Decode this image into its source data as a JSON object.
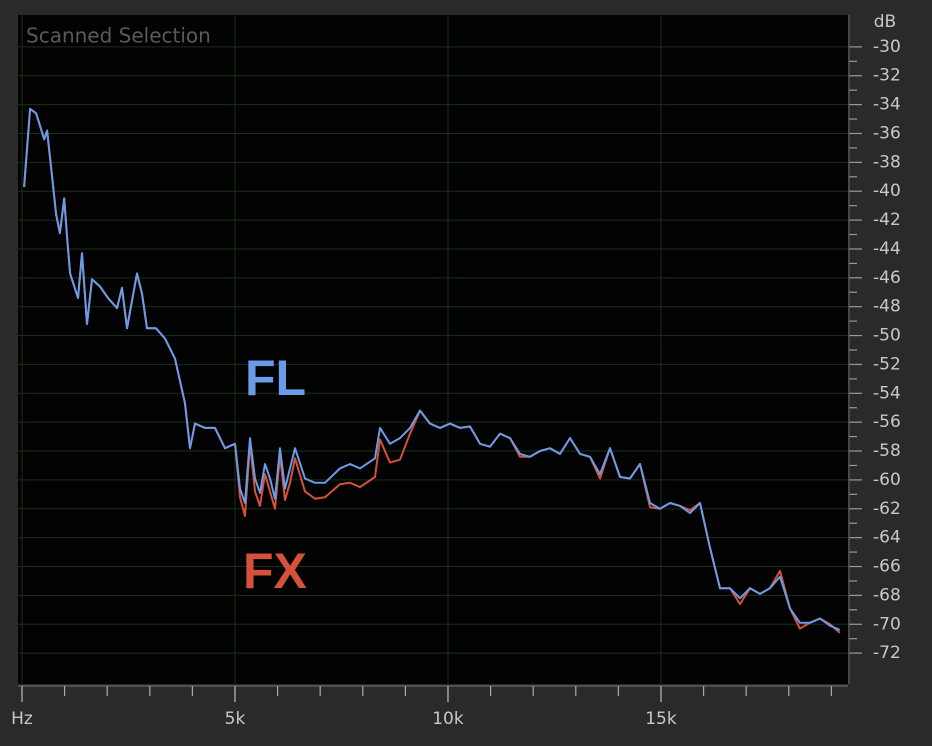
{
  "chart_data": {
    "type": "line",
    "title": "Scanned Selection",
    "ylabel": "dB",
    "x": [
      50,
      190,
      330,
      520,
      590,
      700,
      800,
      890,
      990,
      1060,
      1130,
      1315,
      1408,
      1526,
      1643,
      1831,
      2019,
      2230,
      2347,
      2465,
      2700,
      2817,
      2934,
      3146,
      3357,
      3591,
      3826,
      3944,
      4061,
      4296,
      4531,
      4765,
      5000,
      5117,
      5235,
      5352,
      5469,
      5587,
      5704,
      5822,
      5939,
      6056,
      6174,
      6291,
      6408,
      6643,
      6878,
      7113,
      7465,
      7700,
      7934,
      8286,
      8404,
      8638,
      8873,
      9108,
      9343,
      9577,
      9812,
      10047,
      10282,
      10516,
      10751,
      10986,
      11220,
      11455,
      11690,
      11925,
      12160,
      12394,
      12629,
      12864,
      13098,
      13333,
      13568,
      13803,
      14037,
      14272,
      14507,
      14742,
      14976,
      15211,
      15446,
      15681,
      15915,
      16150,
      16385,
      16620,
      16854,
      17089,
      17324,
      17558,
      17793,
      18028,
      18262,
      18497,
      18732,
      18967,
      19201
    ],
    "series": [
      {
        "name": "FX",
        "color": "#d6513c",
        "values": [
          -39.7,
          -34.3,
          -34.6,
          -36.4,
          -35.8,
          -38.8,
          -41.6,
          -42.9,
          -40.5,
          -43.3,
          -45.7,
          -47.4,
          -44.3,
          -49.2,
          -46.1,
          -46.6,
          -47.4,
          -48.1,
          -46.7,
          -49.5,
          -45.7,
          -47.1,
          -49.5,
          -49.5,
          -50.2,
          -51.6,
          -54.7,
          -57.8,
          -56.1,
          -56.4,
          -56.4,
          -57.8,
          -57.5,
          -61.2,
          -62.5,
          -57.5,
          -60.8,
          -61.8,
          -59.6,
          -60.8,
          -62.0,
          -58.3,
          -61.4,
          -60.2,
          -58.5,
          -60.8,
          -61.3,
          -61.2,
          -60.3,
          -60.2,
          -60.5,
          -59.8,
          -57.2,
          -58.8,
          -58.6,
          -56.8,
          -55.2,
          -56.1,
          -56.4,
          -56.1,
          -56.4,
          -56.3,
          -57.5,
          -57.7,
          -56.8,
          -57.1,
          -58.4,
          -58.4,
          -58.0,
          -57.8,
          -58.2,
          -57.1,
          -58.2,
          -58.4,
          -59.9,
          -57.8,
          -59.8,
          -59.9,
          -58.9,
          -61.9,
          -62.0,
          -61.6,
          -61.8,
          -62.1,
          -61.6,
          -64.7,
          -67.5,
          -67.5,
          -68.6,
          -67.5,
          -67.9,
          -67.5,
          -66.3,
          -68.9,
          -70.3,
          -69.9,
          -69.6,
          -70.0,
          -70.6
        ]
      },
      {
        "name": "FL",
        "color": "#6b9be8",
        "values": [
          -39.7,
          -34.3,
          -34.6,
          -36.4,
          -35.8,
          -38.8,
          -41.6,
          -42.9,
          -40.5,
          -43.3,
          -45.7,
          -47.4,
          -44.3,
          -49.2,
          -46.1,
          -46.6,
          -47.4,
          -48.1,
          -46.7,
          -49.5,
          -45.7,
          -47.1,
          -49.5,
          -49.5,
          -50.2,
          -51.6,
          -54.7,
          -57.8,
          -56.1,
          -56.4,
          -56.4,
          -57.8,
          -57.5,
          -60.6,
          -61.6,
          -57.1,
          -59.9,
          -60.9,
          -58.9,
          -59.9,
          -61.3,
          -57.8,
          -60.6,
          -59.2,
          -57.8,
          -59.9,
          -60.2,
          -60.2,
          -59.2,
          -58.9,
          -59.2,
          -58.5,
          -56.4,
          -57.5,
          -57.1,
          -56.4,
          -55.2,
          -56.1,
          -56.4,
          -56.1,
          -56.4,
          -56.3,
          -57.5,
          -57.7,
          -56.8,
          -57.1,
          -58.2,
          -58.4,
          -58.0,
          -57.8,
          -58.2,
          -57.1,
          -58.2,
          -58.4,
          -59.6,
          -57.8,
          -59.8,
          -59.9,
          -58.9,
          -61.6,
          -62.0,
          -61.6,
          -61.8,
          -62.3,
          -61.6,
          -64.7,
          -67.5,
          -67.5,
          -68.2,
          -67.5,
          -67.9,
          -67.5,
          -66.7,
          -68.9,
          -69.9,
          -69.9,
          -69.6,
          -70.1,
          -70.4
        ]
      }
    ],
    "xlim": [
      0,
      19320
    ],
    "xticks": [
      {
        "value": 0,
        "label": "Hz"
      },
      {
        "value": 5000,
        "label": "5k"
      },
      {
        "value": 10000,
        "label": "10k"
      },
      {
        "value": 15000,
        "label": "15k"
      }
    ],
    "ylim": [
      -74,
      -28
    ],
    "yticks": [
      -30,
      -32,
      -34,
      -36,
      -38,
      -40,
      -42,
      -44,
      -46,
      -48,
      -50,
      -52,
      -54,
      -56,
      -58,
      -60,
      -62,
      -64,
      -66,
      -68,
      -70,
      -72
    ],
    "grid": true
  }
}
